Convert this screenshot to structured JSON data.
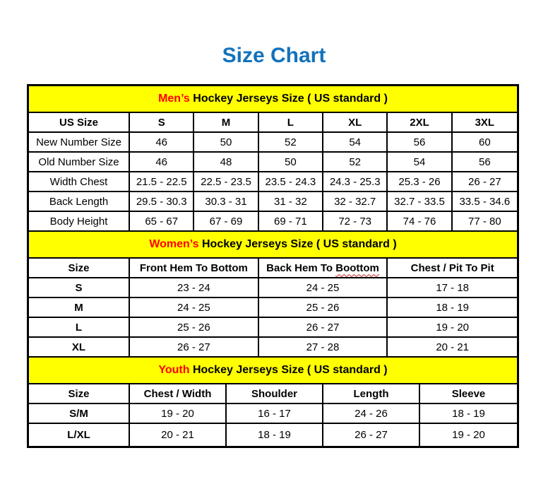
{
  "title": "Size Chart",
  "colors": {
    "title_blue": "#1272BB",
    "band_yellow": "#FFFF00",
    "accent_red": "#FF0000",
    "border_black": "#000000",
    "misspell_red": "#CC2222"
  },
  "chart_data": [
    {
      "type": "table",
      "title": "Men’s Hockey Jerseys Size ( US standard )",
      "title_highlight": "Men’s",
      "title_rest": " Hockey Jerseys Size ( US standard )",
      "columns": [
        "US Size",
        "S",
        "M",
        "L",
        "XL",
        "2XL",
        "3XL"
      ],
      "rows": [
        [
          "New Number Size",
          "46",
          "50",
          "52",
          "54",
          "56",
          "60"
        ],
        [
          "Old Number Size",
          "46",
          "48",
          "50",
          "52",
          "54",
          "56"
        ],
        [
          "Width Chest",
          "21.5 - 22.5",
          "22.5 - 23.5",
          "23.5 - 24.3",
          "24.3 - 25.3",
          "25.3 - 26",
          "26 - 27"
        ],
        [
          "Back Length",
          "29.5 - 30.3",
          "30.3 - 31",
          "31 - 32",
          "32 - 32.7",
          "32.7 - 33.5",
          "33.5 - 34.6"
        ],
        [
          "Body Height",
          "65 - 67",
          "67 - 69",
          "69 - 71",
          "72 - 73",
          "74 - 76",
          "77 - 80"
        ]
      ]
    },
    {
      "type": "table",
      "title": "Women’s Hockey Jerseys Size ( US standard )",
      "title_highlight": "Women’s",
      "title_rest": " Hockey Jerseys Size ( US standard )",
      "columns": [
        "Size",
        "Front Hem To Bottom",
        "Back Hem To Boottom",
        "Chest / Pit To Pit"
      ],
      "misspelled_header": {
        "column_index": 2,
        "prefix": "Back Hem To ",
        "word": "Boottom"
      },
      "rows": [
        [
          "S",
          "23 - 24",
          "24 - 25",
          "17 - 18"
        ],
        [
          "M",
          "24 - 25",
          "25 - 26",
          "18 - 19"
        ],
        [
          "L",
          "25 - 26",
          "26 - 27",
          "19 - 20"
        ],
        [
          "XL",
          "26 - 27",
          "27 - 28",
          "20 - 21"
        ]
      ]
    },
    {
      "type": "table",
      "title": "Youth Hockey Jerseys Size ( US standard )",
      "title_highlight": "Youth",
      "title_rest": " Hockey Jerseys Size ( US standard )",
      "columns": [
        "Size",
        "Chest / Width",
        "Shoulder",
        "Length",
        "Sleeve"
      ],
      "rows": [
        [
          "S/M",
          "19 - 20",
          "16 - 17",
          "24 - 26",
          "18 - 19"
        ],
        [
          "L/XL",
          "20 - 21",
          "18 - 19",
          "26 - 27",
          "19 - 20"
        ]
      ]
    }
  ]
}
